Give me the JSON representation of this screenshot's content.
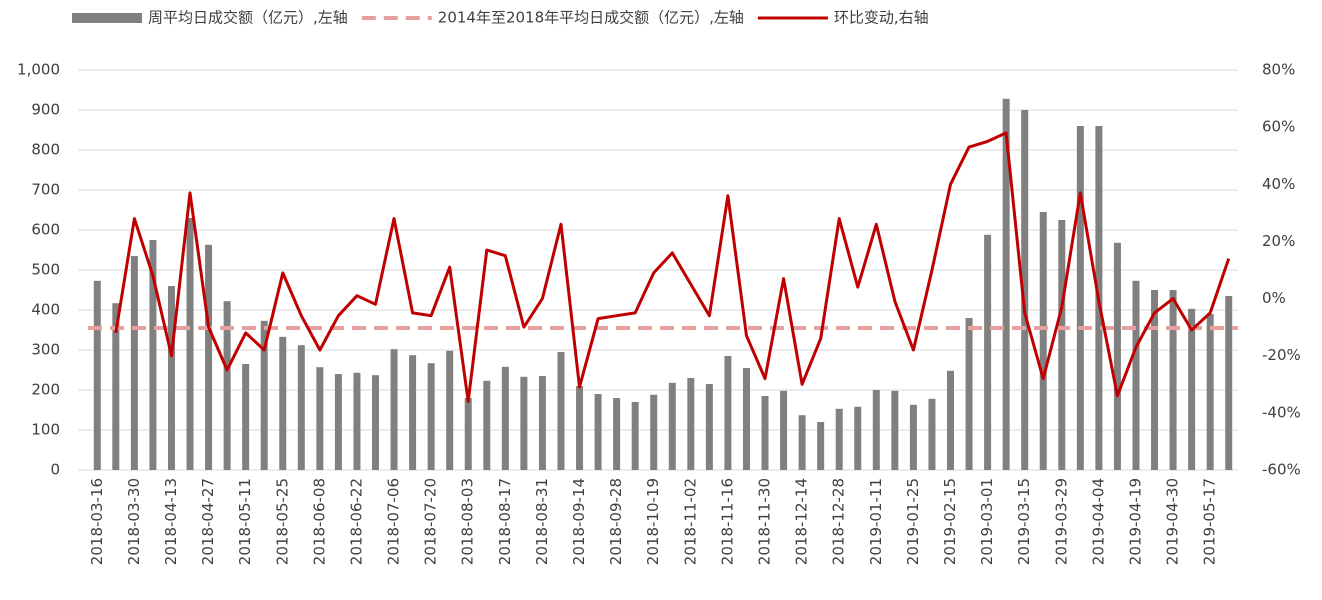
{
  "chart_data": {
    "type": "bar-line",
    "legend_position": "top",
    "categories": [
      "2018-03-16",
      null,
      "2018-03-30",
      null,
      "2018-04-13",
      null,
      "2018-04-27",
      null,
      "2018-05-11",
      null,
      "2018-05-25",
      null,
      "2018-06-08",
      null,
      "2018-06-22",
      null,
      "2018-07-06",
      null,
      "2018-07-20",
      null,
      "2018-08-03",
      null,
      "2018-08-17",
      null,
      "2018-08-31",
      null,
      "2018-09-14",
      null,
      "2018-09-28",
      null,
      "2018-10-19",
      null,
      "2018-11-02",
      null,
      "2018-11-16",
      null,
      "2018-11-30",
      null,
      "2018-12-14",
      null,
      "2018-12-28",
      null,
      "2019-01-11",
      null,
      "2019-01-25",
      null,
      "2019-02-15",
      null,
      "2019-03-01",
      null,
      "2019-03-15",
      null,
      "2019-03-29",
      null,
      "2019-04-04",
      null,
      "2019-04-19",
      null,
      "2019-04-30",
      null,
      "2019-05-17",
      null
    ],
    "series": [
      {
        "name": "周平均日成交额（亿元）,左轴",
        "kind": "bar",
        "color": "#808080",
        "values": [
          473,
          417,
          535,
          575,
          460,
          630,
          563,
          422,
          265,
          373,
          333,
          312,
          257,
          240,
          243,
          237,
          302,
          287,
          267,
          298,
          180,
          223,
          258,
          233,
          235,
          295,
          210,
          190,
          180,
          170,
          188,
          218,
          230,
          215,
          285,
          255,
          185,
          198,
          137,
          120,
          153,
          158,
          200,
          198,
          163,
          178,
          248,
          380,
          588,
          928,
          900,
          645,
          625,
          860,
          860,
          568,
          473,
          450,
          450,
          403,
          390,
          435
        ]
      },
      {
        "name": "2014年至2018年平均日成交额（亿元）,左轴",
        "kind": "hline",
        "color": "#e6a0a0",
        "value": 355
      },
      {
        "name": "环比变动,右轴",
        "kind": "line",
        "axis": "y2",
        "color": "#c00000",
        "values": [
          null,
          -12,
          28,
          8,
          -20,
          37,
          -10,
          -25,
          -12,
          -18,
          9,
          -6,
          -18,
          -6,
          1,
          -2,
          28,
          -5,
          -6,
          11,
          -36,
          17,
          15,
          -10,
          0,
          26,
          -31,
          -7,
          -6,
          -5,
          9,
          16,
          5,
          -6,
          36,
          -13,
          -28,
          7,
          -30,
          -14,
          28,
          4,
          26,
          -1,
          -18,
          10,
          40,
          53,
          55,
          58,
          -5,
          -28,
          -3,
          37,
          -1,
          -34,
          -17,
          -5,
          0,
          -11,
          -5,
          14
        ]
      }
    ],
    "ylim": [
      0,
      1000
    ],
    "yticks": [
      0,
      100,
      200,
      300,
      400,
      500,
      600,
      700,
      800,
      900,
      {
        "value": 1000,
        "label": "1,000"
      }
    ],
    "y2lim": [
      -60,
      80
    ],
    "y2ticks": [
      {
        "value": -60,
        "label": "-60%"
      },
      {
        "value": -40,
        "label": "-40%"
      },
      {
        "value": -20,
        "label": "-20%"
      },
      {
        "value": 0,
        "label": "0%"
      },
      {
        "value": 20,
        "label": "20%"
      },
      {
        "value": 40,
        "label": "40%"
      },
      {
        "value": 60,
        "label": "60%"
      },
      {
        "value": 80,
        "label": "80%"
      }
    ],
    "grid": true
  }
}
